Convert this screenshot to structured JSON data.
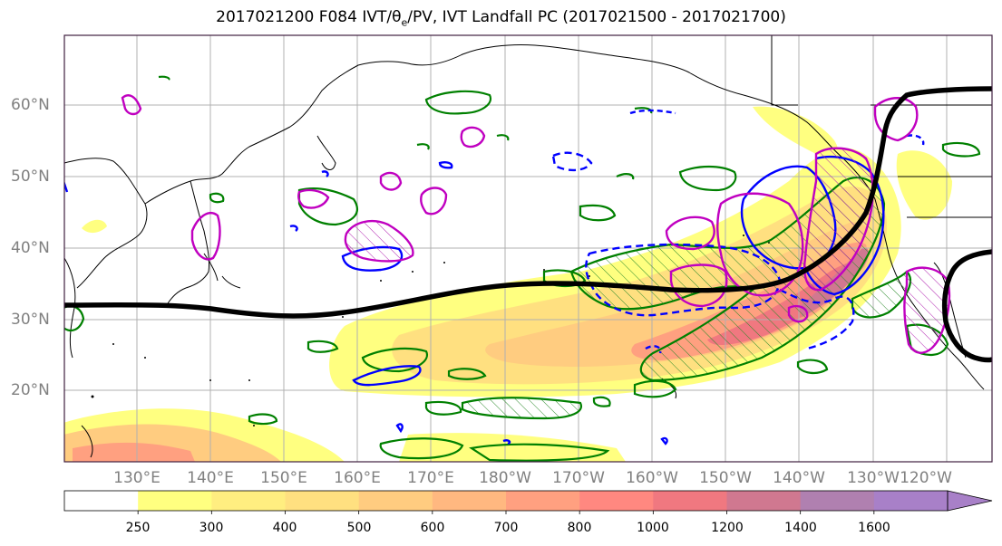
{
  "title": {
    "prefix": "2017021200 F084 IVT/",
    "theta": "θ",
    "sub": "e",
    "suffix": "/PV, IVT Landfall PC (2017021500 - 2017021700)"
  },
  "lat_labels": [
    "60°N",
    "50°N",
    "40°N",
    "30°N",
    "20°N"
  ],
  "lon_labels": [
    "130°E",
    "140°E",
    "150°E",
    "160°E",
    "170°E",
    "180°W",
    "170°W",
    "160°W",
    "150°W",
    "140°W",
    "130°W",
    "120°W"
  ],
  "colorbar": {
    "labels": [
      "250",
      "300",
      "400",
      "500",
      "600",
      "700",
      "800",
      "1000",
      "1200",
      "1400",
      "1600"
    ],
    "colors": [
      "#ffffff",
      "#ffff80",
      "#ffee80",
      "#ffe080",
      "#ffcc80",
      "#ffb880",
      "#ffa080",
      "#ff8880",
      "#f07880",
      "#d07890",
      "#b080b0",
      "#a880c8"
    ]
  },
  "colors": {
    "landfall_pc_line": "#000000",
    "green_contours": "#008000",
    "blue_contours": "#0000ff",
    "magenta_contours": "#c000c0",
    "grid": "#b0b0b0",
    "coastline": "#000000"
  }
}
